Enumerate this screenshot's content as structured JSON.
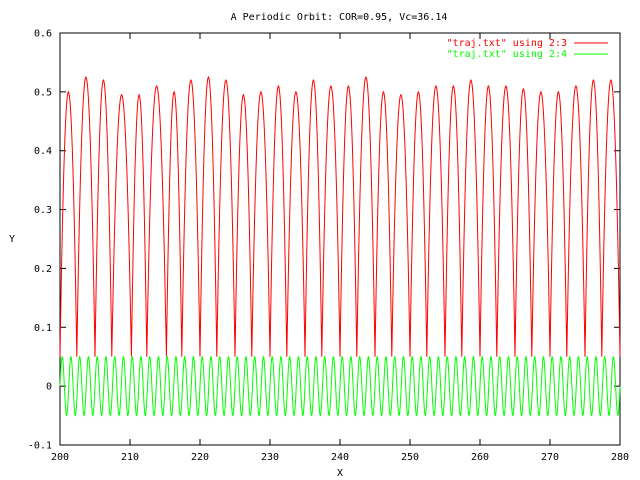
{
  "chart_data": {
    "type": "line",
    "title": "A Periodic Orbit: COR=0.95, Vc=36.14",
    "xlabel": "X",
    "ylabel": "Y",
    "xlim": [
      200,
      280
    ],
    "ylim": [
      -0.1,
      0.6
    ],
    "xticks": [
      "200",
      "210",
      "220",
      "230",
      "240",
      "250",
      "260",
      "270",
      "280"
    ],
    "yticks": [
      "-0.1",
      "0",
      "0.1",
      "0.2",
      "0.3",
      "0.4",
      "0.5",
      "0.6"
    ],
    "grid": false,
    "legend_position": "top-right",
    "series": [
      {
        "name": "\"traj.txt\" using 2:3",
        "color": "#ff0000",
        "shape": "bouncing arcs",
        "x_start": 200,
        "x_end": 280,
        "baseline": 0.05,
        "peak_x": [
          201.2,
          203.7,
          206.2,
          208.8,
          211.3,
          213.8,
          216.3,
          218.7,
          221.2,
          223.7,
          226.2,
          228.7,
          231.2,
          233.7,
          236.2,
          238.7,
          241.2,
          243.7,
          246.2,
          248.7,
          251.2,
          253.7,
          256.2,
          258.7,
          261.2,
          263.7,
          266.2,
          268.7,
          271.2,
          273.7,
          276.2,
          278.7
        ],
        "peaks": [
          0.5,
          0.525,
          0.52,
          0.495,
          0.495,
          0.51,
          0.5,
          0.52,
          0.525,
          0.52,
          0.495,
          0.5,
          0.51,
          0.5,
          0.52,
          0.51,
          0.51,
          0.525,
          0.5,
          0.495,
          0.5,
          0.51,
          0.51,
          0.52,
          0.51,
          0.51,
          0.505,
          0.5,
          0.5,
          0.51,
          0.52,
          0.52
        ]
      },
      {
        "name": "\"traj.txt\" using 2:4",
        "color": "#00ff00",
        "shape": "sine",
        "x_start": 200,
        "x_end": 280,
        "amplitude": 0.05,
        "center": 0,
        "cycles": 64
      }
    ]
  }
}
